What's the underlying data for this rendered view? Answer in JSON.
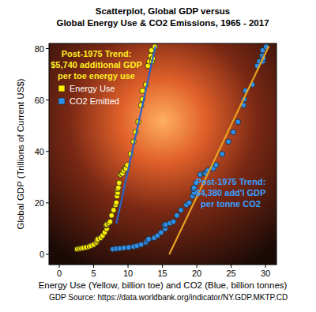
{
  "chart_data": {
    "type": "scatter",
    "title": "Scatterplot, Global GDP versus",
    "subtitle": "Global Energy Use & CO2 Emissions, 1965 - 2017",
    "x_label": "Energy Use (Yellow, billion toe) and CO2 (Blue, billion tonnes)",
    "y_label": "Global GDP (Trillions of Current US$)",
    "source": "GDP Source: https://data.worldbank.org/indicator/NY.GDP.MKTP.CD",
    "annotations": [
      [
        "Post-1975 Trend:",
        "$5,740 additional GDP",
        "per toe energy use"
      ],
      [
        "Post-1975 Trend:",
        "$4,380 add'l GDP",
        "per tonne CO2"
      ]
    ],
    "xlim": [
      -1.5,
      31.6
    ],
    "ylim": [
      -4,
      82
    ],
    "xticks": [
      0,
      5,
      10,
      15,
      20,
      25,
      30
    ],
    "yticks": [
      0,
      20,
      40,
      60,
      80
    ],
    "grid": false,
    "legend": "top-left",
    "series": [
      {
        "name": "Energy Use",
        "color": "#ffee00",
        "marker": "circle",
        "x": [
          2.6,
          2.9,
          3.2,
          3.5,
          3.9,
          4.3,
          4.6,
          5.0,
          5.4,
          5.5,
          5.6,
          6.0,
          6.3,
          6.6,
          6.9,
          6.8,
          6.8,
          6.8,
          6.9,
          7.2,
          7.4,
          7.6,
          7.9,
          8.2,
          8.3,
          8.4,
          8.5,
          8.5,
          8.6,
          8.7,
          8.9,
          9.1,
          9.2,
          9.2,
          9.4,
          9.6,
          9.7,
          9.9,
          10.4,
          10.8,
          11.1,
          11.5,
          11.9,
          12.1,
          12.1,
          12.6,
          12.9,
          13.1,
          13.3,
          13.4,
          13.5,
          13.6,
          13.9
        ],
        "values": [
          2.0,
          2.2,
          2.3,
          2.5,
          2.7,
          3.0,
          3.3,
          3.8,
          4.6,
          5.3,
          5.9,
          6.4,
          7.3,
          8.5,
          9.9,
          11.2,
          11.5,
          11.4,
          11.6,
          12.1,
          12.7,
          15.1,
          17.2,
          19.2,
          20.1,
          22.6,
          23.9,
          25.4,
          25.9,
          27.8,
          31.0,
          31.6,
          31.5,
          31.4,
          32.6,
          33.6,
          33.4,
          34.7,
          39.0,
          43.8,
          47.5,
          51.5,
          58.0,
          63.6,
          60.3,
          66.0,
          73.3,
          75.0,
          77.2,
          79.3,
          75.0,
          76.2,
          80.7
        ]
      },
      {
        "name": "CO2 Emitted",
        "color": "#2f8fe8",
        "marker": "circle",
        "x": [
          7.8,
          8.3,
          8.8,
          9.4,
          10.1,
          10.8,
          11.3,
          11.9,
          12.6,
          12.8,
          13.0,
          13.8,
          14.3,
          14.8,
          15.4,
          15.4,
          15.3,
          15.3,
          15.5,
          16.1,
          16.6,
          17.1,
          17.7,
          18.5,
          18.9,
          19.4,
          19.6,
          19.5,
          19.6,
          19.9,
          20.5,
          21.1,
          21.3,
          21.3,
          21.6,
          22.2,
          22.4,
          22.8,
          23.7,
          24.6,
          25.3,
          26.0,
          26.8,
          27.1,
          26.9,
          28.1,
          28.8,
          29.1,
          29.5,
          29.6,
          29.6,
          29.7,
          30.1
        ],
        "values": [
          2.0,
          2.2,
          2.3,
          2.5,
          2.7,
          3.0,
          3.3,
          3.8,
          4.6,
          5.3,
          5.9,
          6.4,
          7.3,
          8.5,
          9.9,
          11.2,
          11.5,
          11.4,
          11.6,
          12.1,
          12.7,
          15.1,
          17.2,
          19.2,
          20.1,
          22.6,
          23.9,
          25.4,
          25.9,
          27.8,
          31.0,
          31.6,
          31.5,
          31.4,
          32.6,
          33.6,
          33.4,
          34.7,
          39.0,
          43.8,
          47.5,
          51.5,
          58.0,
          63.6,
          60.3,
          66.0,
          73.3,
          75.0,
          77.2,
          79.3,
          75.0,
          76.2,
          80.7
        ]
      },
      {
        "type": "line",
        "line_style": "solid",
        "color": "#2a64c8",
        "x": [
          8.3,
          14.0
        ],
        "values": [
          12,
          81
        ]
      },
      {
        "type": "line",
        "line_style": "solid",
        "color": "#e8a020",
        "x": [
          16.0,
          30.5
        ],
        "values": [
          0,
          81
        ]
      }
    ]
  }
}
